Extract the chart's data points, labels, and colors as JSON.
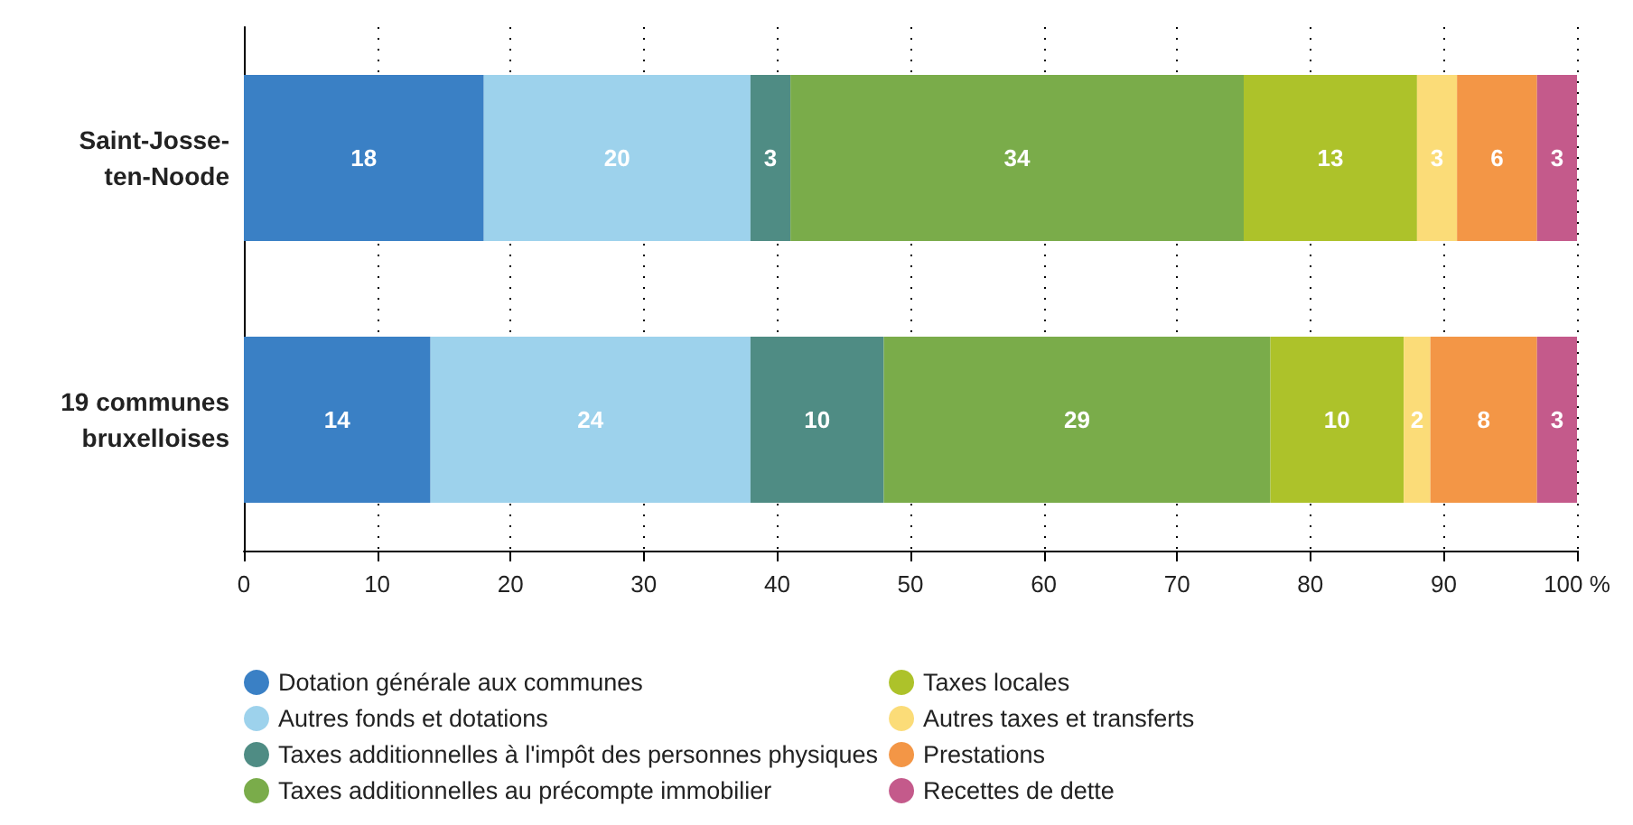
{
  "chart_data": {
    "type": "bar",
    "orientation": "horizontal",
    "stacked": true,
    "categories": [
      "Saint-Josse-ten-Noode",
      "19 communes bruxelloises"
    ],
    "series": [
      {
        "name": "Dotation générale aux communes",
        "color": "#3a80c5",
        "values": [
          18,
          14
        ]
      },
      {
        "name": "Autres fonds et dotations",
        "color": "#9dd2ec",
        "values": [
          20,
          24
        ]
      },
      {
        "name": "Taxes additionnelles à l'impôt des personnes physiques",
        "color": "#4f8c84",
        "values": [
          3,
          10
        ]
      },
      {
        "name": "Taxes additionnelles au précompte immobilier",
        "color": "#7aac4a",
        "values": [
          34,
          29
        ]
      },
      {
        "name": "Taxes locales",
        "color": "#adc22a",
        "values": [
          13,
          10
        ]
      },
      {
        "name": "Autres taxes et transferts",
        "color": "#fbdc78",
        "values": [
          3,
          2
        ]
      },
      {
        "name": "Prestations",
        "color": "#f39646",
        "values": [
          6,
          8
        ]
      },
      {
        "name": "Recettes de dette",
        "color": "#c45a8b",
        "values": [
          3,
          3
        ]
      }
    ],
    "xlim": [
      0,
      100
    ],
    "xticks": [
      0,
      10,
      20,
      30,
      40,
      50,
      60,
      70,
      80,
      90,
      {
        "value": 100,
        "label": "100 %"
      }
    ],
    "grid": "x",
    "legend": "bottom",
    "data_labels": true
  }
}
